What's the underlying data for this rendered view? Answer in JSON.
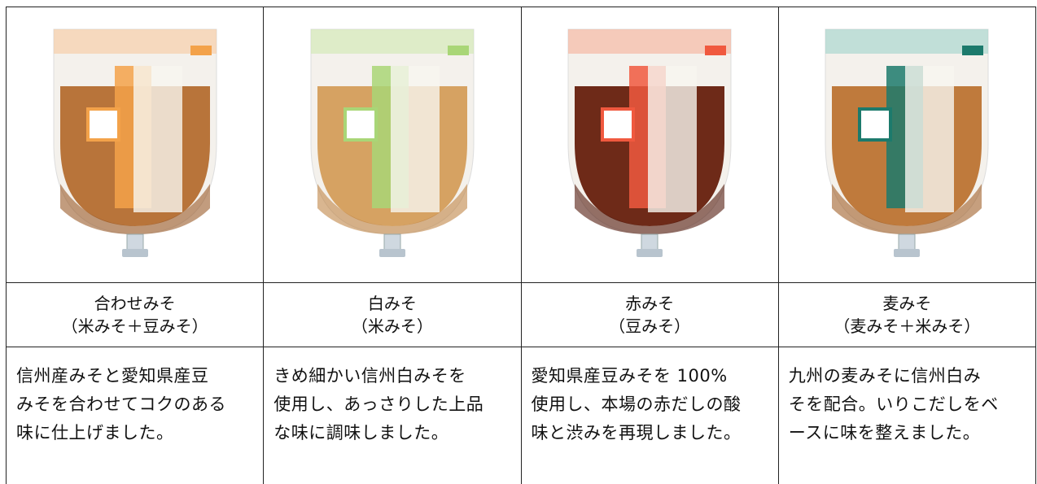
{
  "products": [
    {
      "name": "合わせみそ",
      "type": "（米みそ＋豆みそ）",
      "description": [
        "信州産みそと愛知県産豆",
        "みそを合わせてコクのある",
        "味に仕上げました。"
      ]
    },
    {
      "name": "白みそ",
      "type": "（米みそ）",
      "description": [
        "きめ細かい信州白みそを",
        "使用し、あっさりした上品",
        "な味に調味しました。"
      ]
    },
    {
      "name": "赤みそ",
      "type": "（豆みそ）",
      "description": [
        "愛知県産豆みそを 100%",
        "使用し、本場の赤だしの酸",
        "味と渋みを再現しました。"
      ]
    },
    {
      "name": "麦みそ",
      "type": "（麦みそ＋米みそ）",
      "description": [
        "九州の麦みそに信州白み",
        "そを配合。いりこだしをベ",
        "ースに味を整えました。"
      ]
    }
  ]
}
